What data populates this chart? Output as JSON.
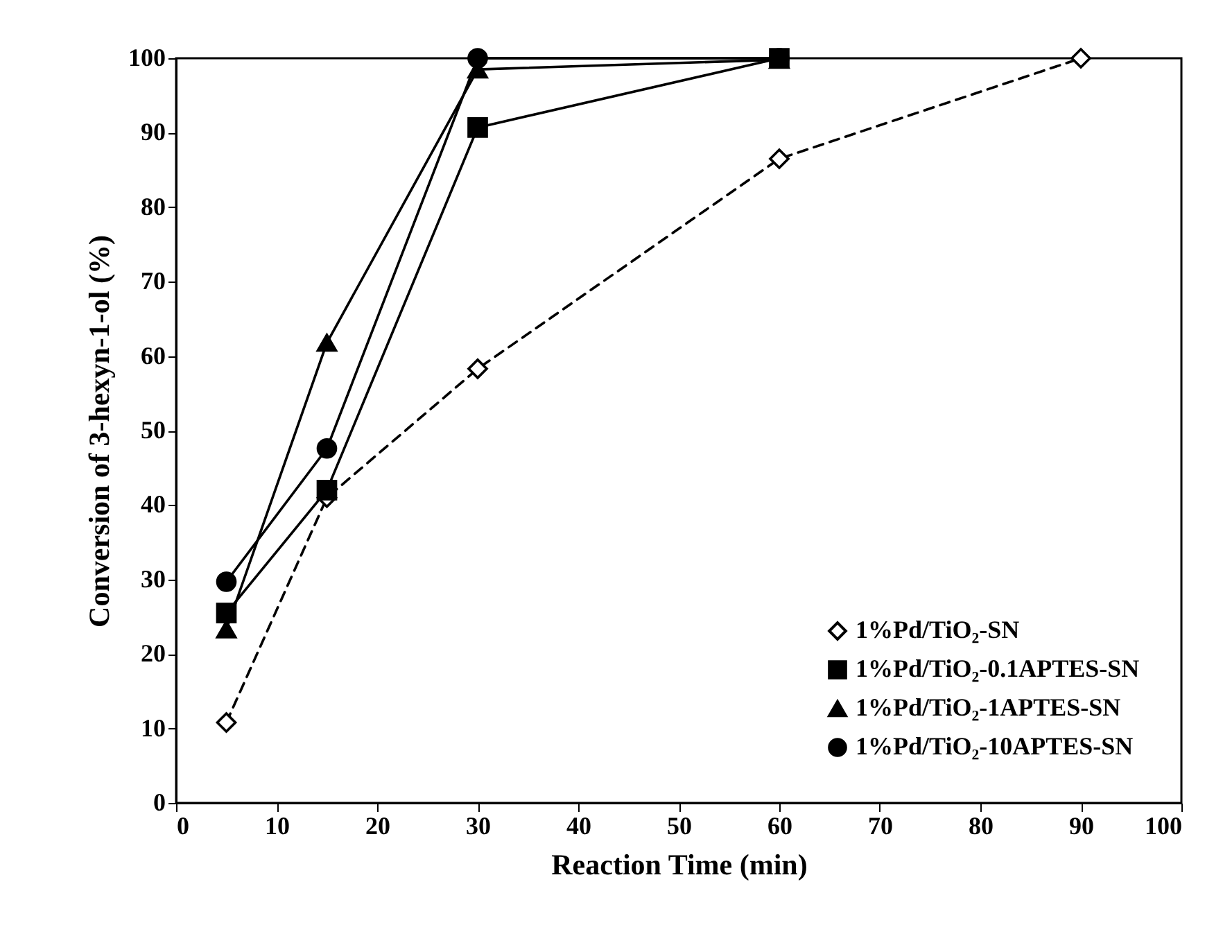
{
  "chart_data": {
    "type": "line",
    "xlabel": "Reaction Time (min)",
    "ylabel": "Conversion of 3-hexyn-1-ol (%)",
    "xlim": [
      0,
      100
    ],
    "xticks": [
      0,
      10,
      20,
      30,
      40,
      50,
      60,
      70,
      80,
      90,
      100
    ],
    "ylim": [
      0,
      100
    ],
    "yticks": [
      0,
      10,
      20,
      30,
      40,
      50,
      60,
      70,
      80,
      90,
      100
    ],
    "grid": false,
    "legend": "bottom right",
    "series": [
      {
        "name": "1%Pd/TiO₂-SN",
        "color": "#000000",
        "marker": "diamond",
        "line_style": "dashed",
        "x": [
          5,
          15,
          30,
          60,
          90
        ],
        "values": [
          10.8,
          41,
          58.3,
          86.5,
          100
        ]
      },
      {
        "name": "1%Pd/TiO₂-0.1APTES-SN",
        "color": "#000000",
        "marker": "square",
        "line_style": "solid",
        "x": [
          5,
          15,
          30,
          60
        ],
        "values": [
          25.5,
          42,
          90.7,
          100
        ]
      },
      {
        "name": "1%Pd/TiO₂-1APTES-SN",
        "color": "#000000",
        "marker": "triangle",
        "line_style": "solid",
        "x": [
          5,
          15,
          30,
          60
        ],
        "values": [
          23.3,
          61.8,
          98.5,
          99.8
        ]
      },
      {
        "name": "1%Pd/TiO₂-10APTES-SN",
        "color": "#000000",
        "marker": "circle",
        "line_style": "solid",
        "x": [
          5,
          15,
          30,
          60
        ],
        "values": [
          29.7,
          47.6,
          100,
          100
        ]
      }
    ]
  }
}
